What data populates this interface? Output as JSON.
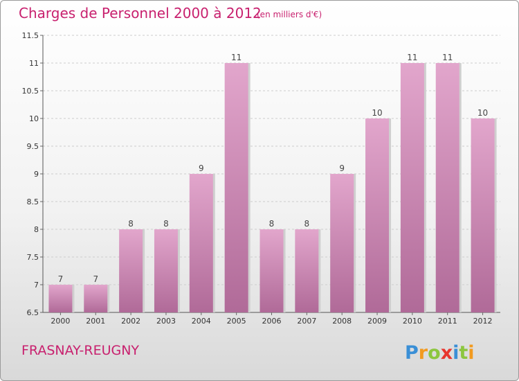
{
  "header": {
    "title": "Charges de Personnel 2000 à 2012",
    "subtitle": "(en milliers d'€)"
  },
  "footer": {
    "place": "FRASNAY-REUGNY",
    "logo_text": "Proxiti"
  },
  "colors": {
    "title": "#c8206e",
    "bar_top": "#e2a6cc",
    "bar_bottom": "#b06a98",
    "grid": "#cccccc"
  },
  "chart_data": {
    "type": "bar",
    "categories": [
      "2000",
      "2001",
      "2002",
      "2003",
      "2004",
      "2005",
      "2006",
      "2007",
      "2008",
      "2009",
      "2010",
      "2011",
      "2012"
    ],
    "values": [
      7,
      7,
      8,
      8,
      9,
      11,
      8,
      8,
      9,
      10,
      11,
      11,
      10
    ],
    "value_labels": [
      "7",
      "7",
      "8",
      "8",
      "9",
      "11",
      "8",
      "8",
      "9",
      "10",
      "11",
      "11",
      "10"
    ],
    "title": "Charges de Personnel 2000 à 2012",
    "ylim": [
      6.5,
      11.5
    ],
    "yticks": [
      6.5,
      7,
      7.5,
      8,
      8.5,
      9,
      9.5,
      10,
      10.5,
      11,
      11.5
    ],
    "ytick_labels": [
      "6.5",
      "7",
      "7.5",
      "8",
      "8.5",
      "9",
      "9.5",
      "10",
      "10.5",
      "11",
      "11.5"
    ],
    "grid": true,
    "legend": "none"
  }
}
